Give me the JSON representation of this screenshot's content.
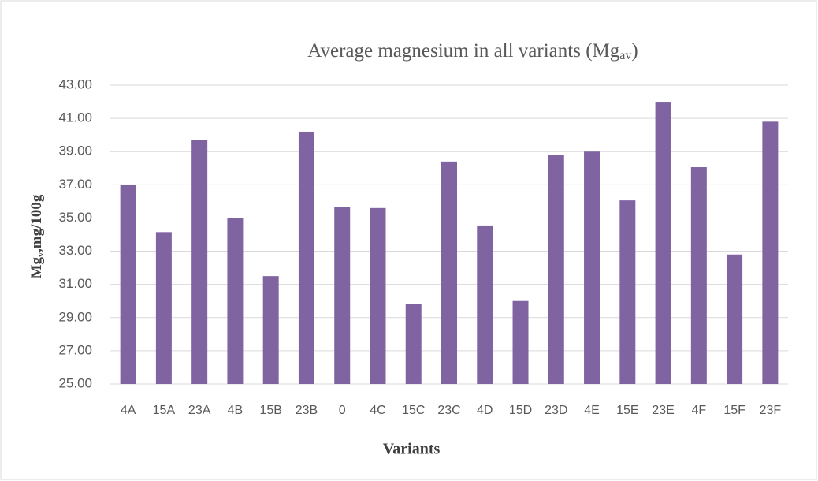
{
  "chart_data": {
    "type": "bar",
    "title": "Average magnesium in all variants (Mg",
    "title_sub": "av",
    "title_end": ")",
    "ylabel": "Mg",
    "ylabel_sub": "v",
    "ylabel_end": ",mg/100g",
    "xlabel": "Variants",
    "categories": [
      "4A",
      "15A",
      "23A",
      "4B",
      "15B",
      "23B",
      "0",
      "4C",
      "15C",
      "23C",
      "4D",
      "15D",
      "23D",
      "4E",
      "15E",
      "23E",
      "4F",
      "15F",
      "23F"
    ],
    "values": [
      37.0,
      34.15,
      39.72,
      35.02,
      31.5,
      40.2,
      35.68,
      35.6,
      29.84,
      38.4,
      34.55,
      30.0,
      38.8,
      39.0,
      36.06,
      42.0,
      38.06,
      32.8,
      40.8
    ],
    "color": "#8064a2",
    "ylim": [
      25,
      43
    ],
    "yticks": [
      {
        "value": 25,
        "label": "25.00"
      },
      {
        "value": 27,
        "label": "27.00"
      },
      {
        "value": 29,
        "label": "29.00"
      },
      {
        "value": 31,
        "label": "31.00"
      },
      {
        "value": 33,
        "label": "33.00"
      },
      {
        "value": 35,
        "label": "35.00"
      },
      {
        "value": 37,
        "label": "37.00"
      },
      {
        "value": 39,
        "label": "39.00"
      },
      {
        "value": 41,
        "label": "41.00"
      },
      {
        "value": 43,
        "label": "43.00"
      }
    ],
    "grid": true
  }
}
